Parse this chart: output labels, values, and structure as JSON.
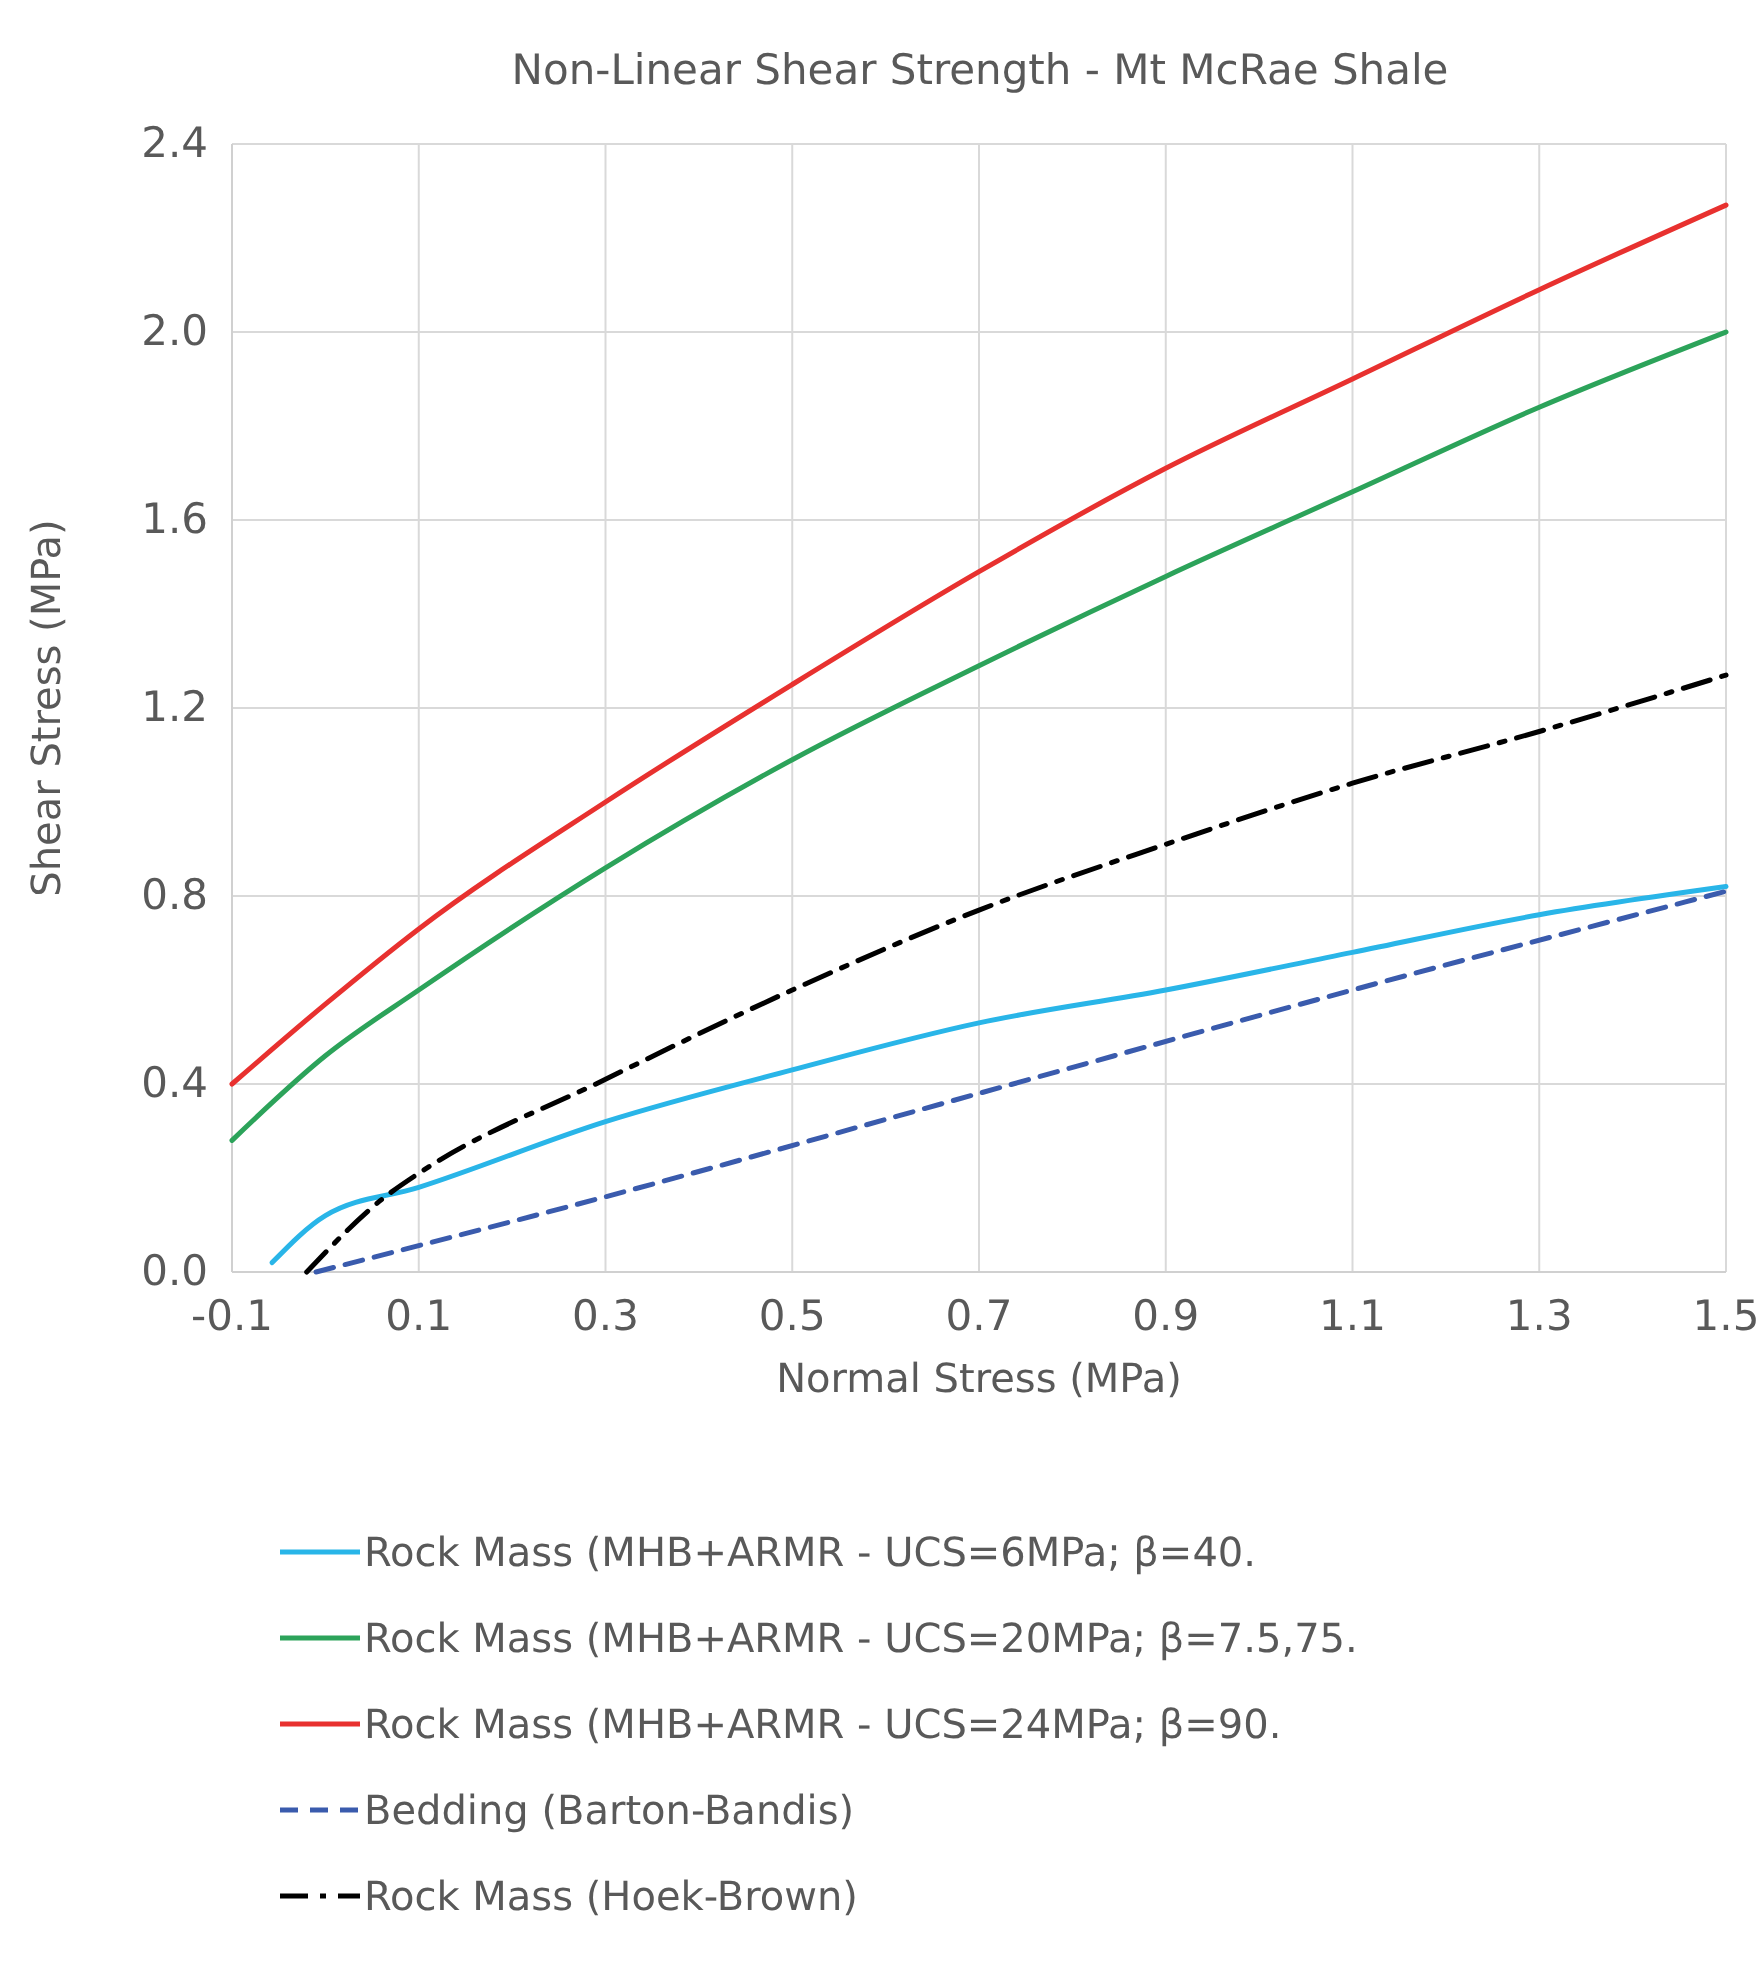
{
  "chart_data": {
    "type": "line",
    "title": "Non-Linear Shear Strength - Mt McRae Shale",
    "xlabel": "Normal Stress (MPa)",
    "ylabel": "Shear Stress (MPa)",
    "xlim": [
      -0.1,
      1.5
    ],
    "xticks": [
      {
        "value": -0.1,
        "label": "-0.1"
      },
      0.1,
      0.3,
      0.5,
      0.7,
      0.9,
      1.1,
      1.3,
      1.5
    ],
    "ylim": [
      0,
      2.4
    ],
    "yticks": [
      {
        "value": 0,
        "label": "0.0"
      },
      0.4,
      0.8,
      1.2,
      1.6,
      {
        "value": 2,
        "label": "2.0"
      },
      2.4
    ],
    "grid": true,
    "legend": "bottom",
    "series": [
      {
        "name": "Rock Mass (MHB+ARMR - UCS=6MPa; β=40.",
        "color": "#29b5e8",
        "line_style": "solid",
        "x": [
          -0.057,
          0,
          0.1,
          0.3,
          0.5,
          0.7,
          0.9,
          1.1,
          1.3,
          1.5
        ],
        "values": [
          0.02,
          0.12,
          0.18,
          0.32,
          0.43,
          0.53,
          0.6,
          0.68,
          0.76,
          0.82
        ]
      },
      {
        "name": "Rock Mass (MHB+ARMR - UCS=20MPa; β=7.5,75.",
        "color": "#2ca35a",
        "line_style": "solid",
        "x": [
          -0.1,
          0,
          0.1,
          0.3,
          0.5,
          0.7,
          0.9,
          1.1,
          1.3,
          1.5
        ],
        "values": [
          0.28,
          0.46,
          0.6,
          0.86,
          1.09,
          1.29,
          1.48,
          1.66,
          1.84,
          2.0
        ]
      },
      {
        "name": "Rock Mass (MHB+ARMR - UCS=24MPa; β=90.",
        "color": "#e8312f",
        "line_style": "solid",
        "x": [
          -0.1,
          0,
          0.1,
          0.3,
          0.5,
          0.7,
          0.9,
          1.1,
          1.3,
          1.5
        ],
        "values": [
          0.4,
          0.57,
          0.73,
          1.0,
          1.25,
          1.49,
          1.71,
          1.9,
          2.09,
          2.27
        ]
      },
      {
        "name": "Bedding (Barton-Bandis)",
        "color": "#3a5bad",
        "line_style": "dashed",
        "x": [
          -0.01,
          0.3,
          0.7,
          1.1,
          1.5
        ],
        "values": [
          0,
          0.16,
          0.38,
          0.6,
          0.81
        ]
      },
      {
        "name": "Rock Mass (Hoek-Brown)",
        "color": "#000000",
        "line_style": "dashdot",
        "x": [
          -0.02,
          0.064,
          0.1,
          0.3,
          0.5,
          0.7,
          0.9,
          1.1,
          1.3,
          1.5
        ],
        "values": [
          0,
          0.16,
          0.21,
          0.41,
          0.6,
          0.77,
          0.91,
          1.04,
          1.15,
          1.27
        ]
      }
    ]
  }
}
